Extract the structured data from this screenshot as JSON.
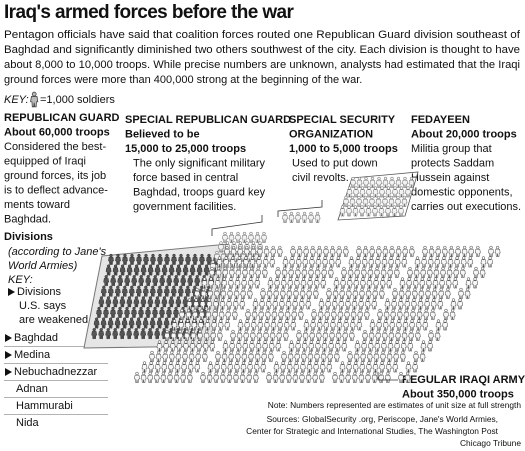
{
  "title": "Iraq's armed forces before the war",
  "intro": {
    "lines": [
      "Pentagon officials have said that coalition forces routed one Republican Guard division southeast of",
      "Baghdad and significantly diminished two others southwest of the city. Each division is thought to have",
      "about 8,000 to 10,000 troops. While precise numbers are unknown, analysts had estimated that the Iraqi",
      "ground forces were more than 400,000 strong at the beginning of the war."
    ]
  },
  "key": {
    "label": "KEY:",
    "text": "=1,000 soldiers"
  },
  "groups": [
    {
      "name": [
        "REPUBLICAN GUARD"
      ],
      "size": [
        "About 60,000 troops"
      ],
      "description": [
        "Considered the best-",
        "equipped of Iraqi",
        "ground forces, its job",
        "is to deflect advance-",
        "ments toward",
        "Baghdad."
      ]
    },
    {
      "name": [
        "SPECIAL REPUBLICAN GUARD"
      ],
      "size": [
        "Believed to be",
        "15,000 to 25,000 troops"
      ],
      "description": [
        "The only significant military",
        "force based in central",
        "Baghdad, troops guard key",
        "government facilities."
      ]
    },
    {
      "name": [
        "SPECIAL SECURITY",
        "ORGANIZATION"
      ],
      "size": [
        "1,000 to 5,000 troops"
      ],
      "description": [
        "Used to put down",
        "civil revolts."
      ]
    },
    {
      "name": [
        "FEDAYEEN"
      ],
      "size": [
        "About 20,000 troops"
      ],
      "description": [
        "Militia group that",
        "protects Saddam",
        "Hussein against",
        "domestic opponents,",
        "carries out executions."
      ]
    },
    {
      "name": [
        "REGULAR IRAQI ARMY"
      ],
      "size": [
        "About 350,000 troops"
      ],
      "description": []
    }
  ],
  "divisions": {
    "title": "Divisions",
    "subtitle": [
      "(according to Jane's",
      "World Armies)"
    ],
    "key_label": "KEY:",
    "key_text": [
      "Divisions",
      "U.S. says",
      "are weakened"
    ],
    "list": [
      {
        "name": "Baghdad",
        "weakened": true
      },
      {
        "name": "Medina",
        "weakened": true
      },
      {
        "name": "Nebuchadnezzar",
        "weakened": true
      },
      {
        "name": "Adnan",
        "weakened": false
      },
      {
        "name": "Hammurabi",
        "weakened": false
      },
      {
        "name": "Nida",
        "weakened": false
      }
    ]
  },
  "note": "Note: Numbers represented are estimates of unit size at full strength",
  "sources": [
    "Sources: GlobalSecurity .org, Periscope, Jane's World Armies,",
    "Center for Strategic and International Studies, The Washington Post"
  ],
  "credit": "Chicago Tribune"
}
